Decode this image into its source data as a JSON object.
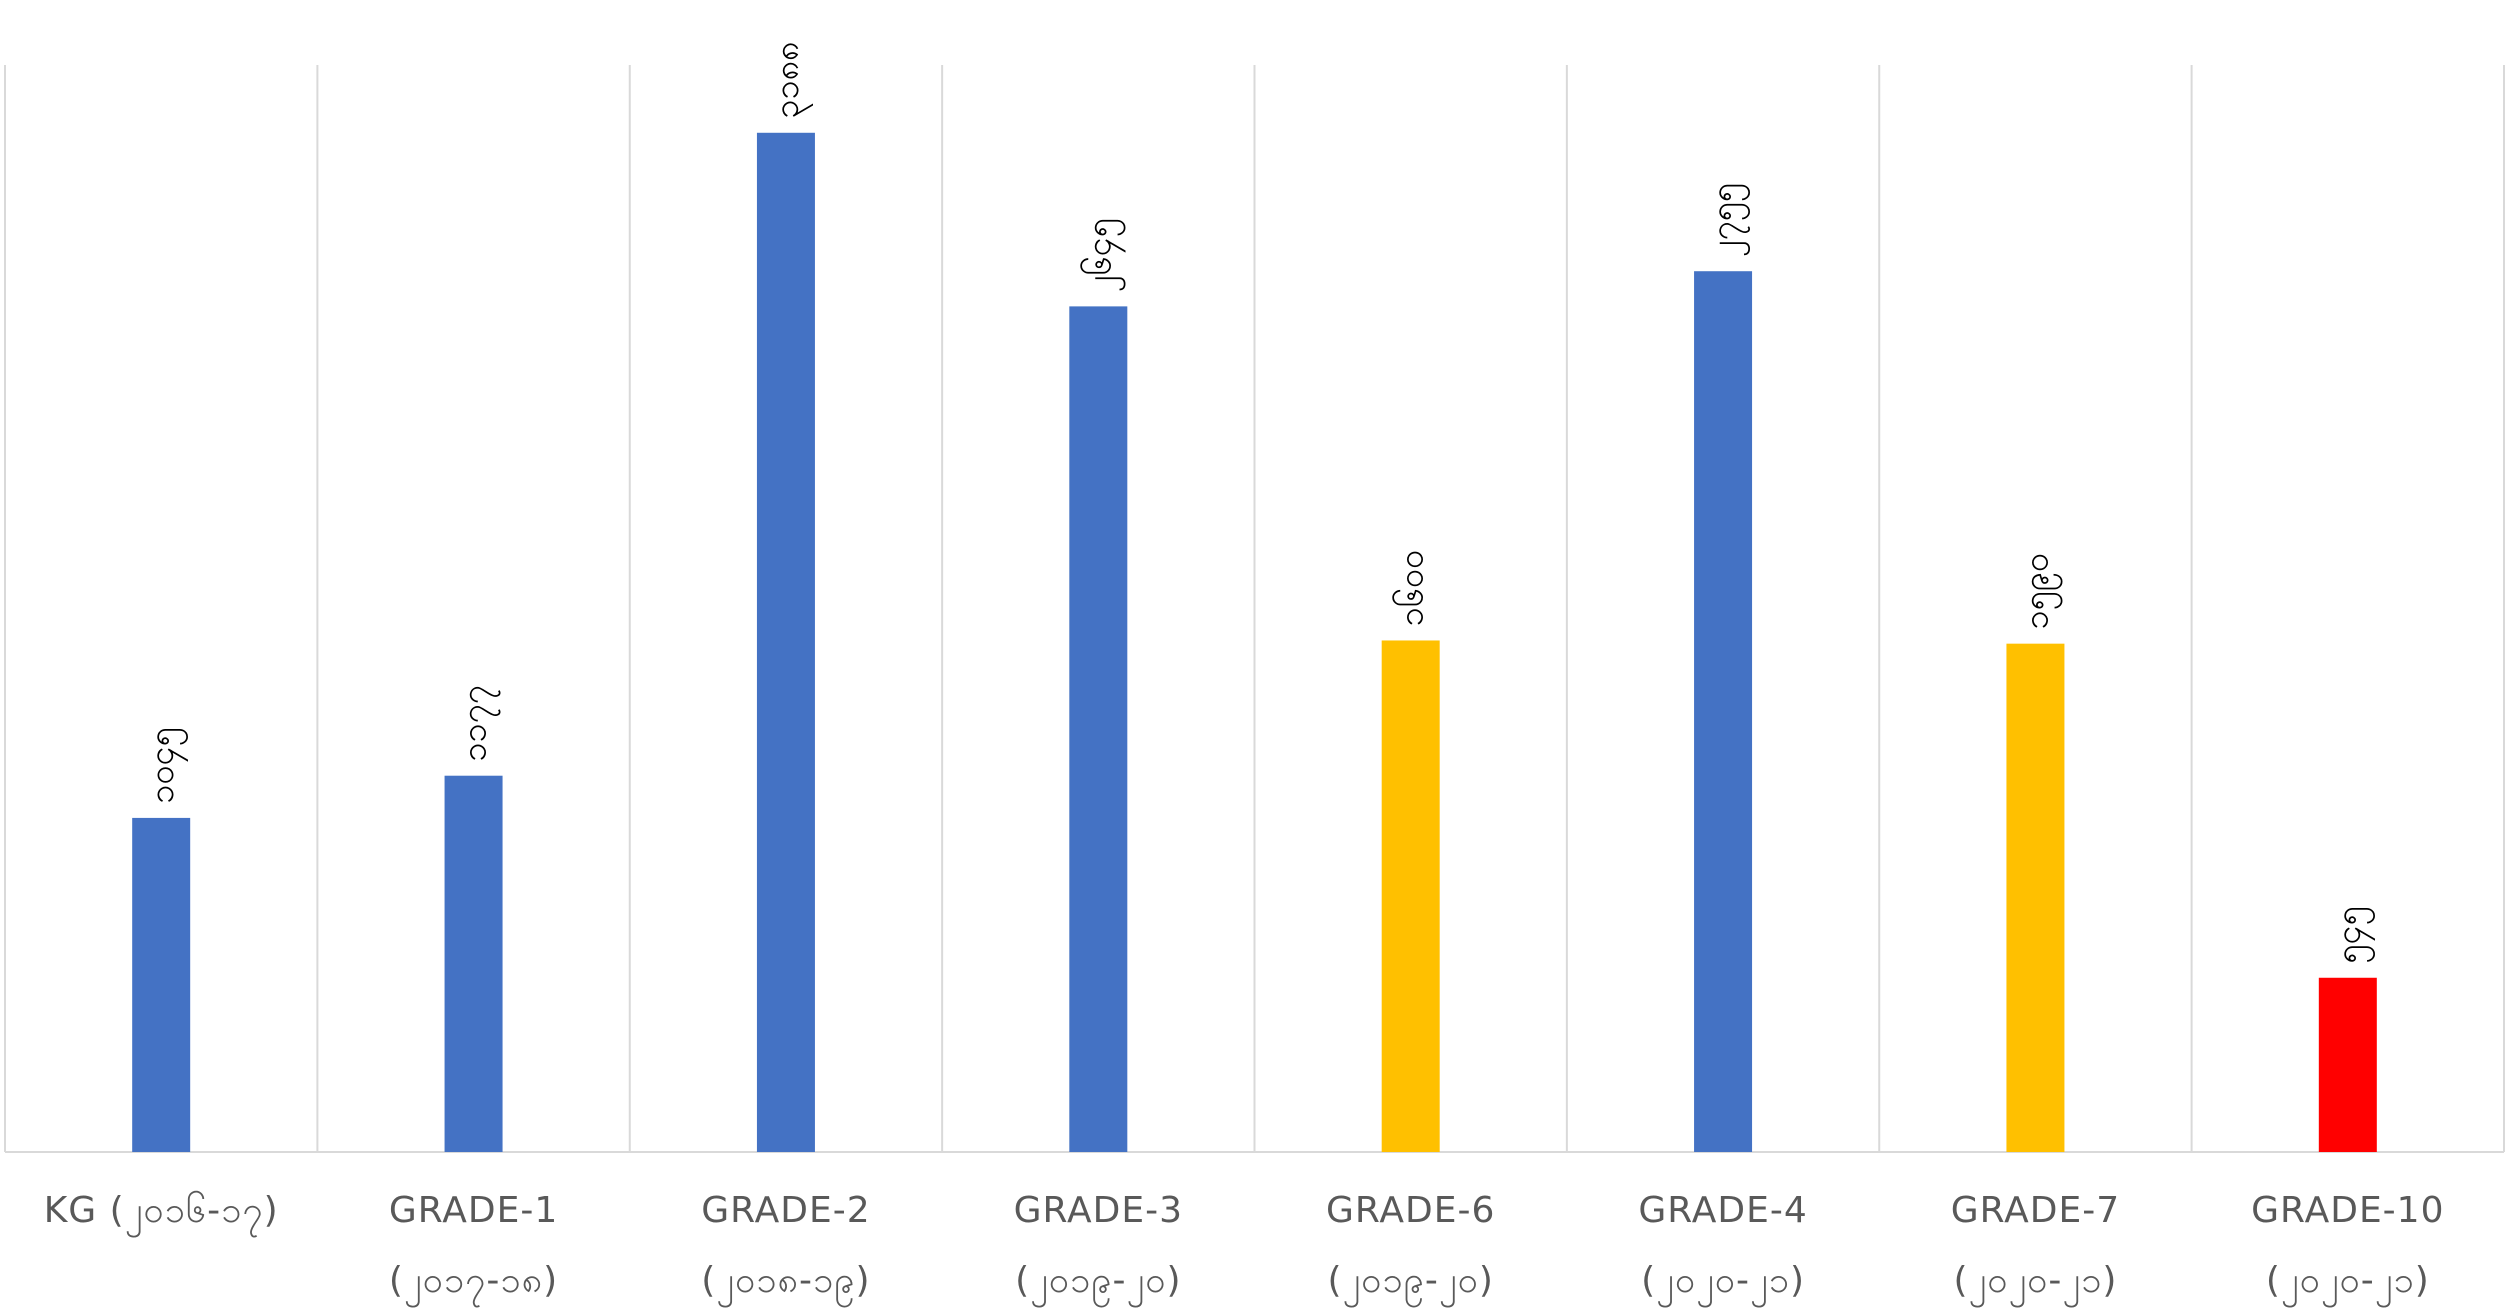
{
  "chart_data": {
    "type": "bar",
    "categories": [
      {
        "line1": "KG (၂၀၁၆-၁၇)",
        "line2": ""
      },
      {
        "line1": "GRADE-1",
        "line2": "(၂၀၁၇-၁၈)"
      },
      {
        "line1": "GRADE-2",
        "line2": "(၂၀၁၈-၁၉)"
      },
      {
        "line1": "GRADE-3",
        "line2": "(၂၀၁၉-၂၀)"
      },
      {
        "line1": "GRADE-6",
        "line2": "(၂၀၁၉-၂၀)"
      },
      {
        "line1": "GRADE-4",
        "line2": "(၂၀၂၀-၂၁)"
      },
      {
        "line1": "GRADE-7",
        "line2": "(၂၀၂၀-၂၁)"
      },
      {
        "line1": "GRADE-10",
        "line2": "(၂၀၂၀-၂၁)"
      }
    ],
    "values": [
      1045,
      1177,
      3188,
      2645,
      1600,
      2755,
      1590,
      545
    ],
    "data_labels": [
      "၁၀၄၅",
      "၁၁၇၇",
      "၃၁၈၈",
      "၂၆၄၅",
      "၁၆၀၀",
      "၂၇၅၅",
      "၁၅၉၀",
      "၅၄၅"
    ],
    "colors": [
      "#4472C4",
      "#4472C4",
      "#4472C4",
      "#4472C4",
      "#FFC000",
      "#4472C4",
      "#FFC000",
      "#FF0000"
    ],
    "ylim": [
      0,
      3400
    ],
    "title": "",
    "xlabel": "",
    "ylabel": "",
    "grid": "vertical-separators",
    "legend": "none"
  }
}
